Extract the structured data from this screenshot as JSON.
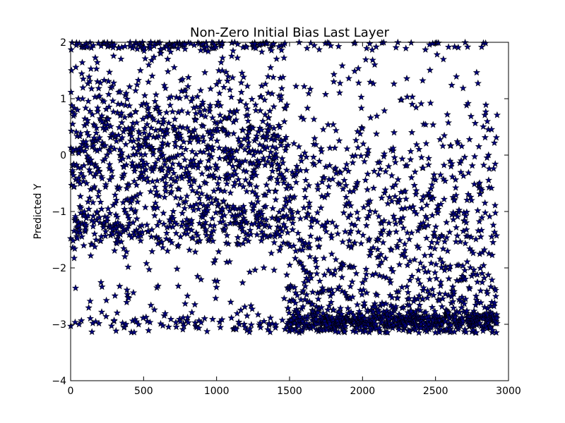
{
  "chart_data": {
    "type": "scatter",
    "title": "Non-Zero Initial Bias Last Layer",
    "xlabel": "",
    "ylabel": "Predicted Y",
    "xlim": [
      0,
      3000
    ],
    "ylim": [
      -4,
      2
    ],
    "x_ticks": [
      0,
      500,
      1000,
      1500,
      2000,
      2500,
      3000
    ],
    "x_tick_labels": [
      "0",
      "500",
      "1000",
      "1500",
      "2000",
      "2500",
      "3000"
    ],
    "y_ticks": [
      -4,
      -3,
      -2,
      -1,
      0,
      1,
      2
    ],
    "y_tick_labels": [
      "−4",
      "−3",
      "−2",
      "−1",
      "0",
      "1",
      "2"
    ],
    "grid": false,
    "marker": "star",
    "marker_color": "#000080",
    "marker_edge": "#000000",
    "n_points": 2923,
    "regions": [
      {
        "x_range": [
          0,
          1480
        ],
        "y_clusters": [
          {
            "center": 0.2,
            "spread": 0.55,
            "share": 0.36
          },
          {
            "center": -0.35,
            "spread": 0.35,
            "share": 0.14
          },
          {
            "center": -1.25,
            "spread": 0.22,
            "share": 0.22
          },
          {
            "center": 1.95,
            "spread": 0.05,
            "share": 0.1
          },
          {
            "center": 1.3,
            "spread": 0.45,
            "share": 0.08
          },
          {
            "center": -2.4,
            "spread": 0.45,
            "share": 0.05
          },
          {
            "center": -3.0,
            "spread": 0.08,
            "share": 0.05
          }
        ]
      },
      {
        "x_range": [
          1480,
          2923
        ],
        "y_clusters": [
          {
            "center": -2.95,
            "spread": 0.1,
            "share": 0.38
          },
          {
            "center": -2.6,
            "spread": 0.3,
            "share": 0.15
          },
          {
            "center": -1.4,
            "spread": 0.75,
            "share": 0.32
          },
          {
            "center": -0.3,
            "spread": 0.45,
            "share": 0.09
          },
          {
            "center": 1.0,
            "spread": 0.5,
            "share": 0.04
          },
          {
            "center": 1.95,
            "spread": 0.05,
            "share": 0.02
          }
        ]
      }
    ]
  }
}
